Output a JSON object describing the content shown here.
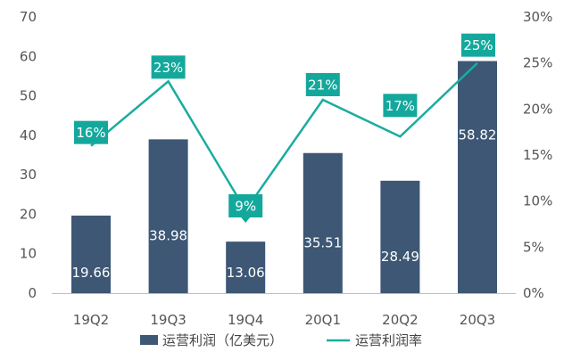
{
  "chart_data": {
    "type": "bar+line",
    "categories": [
      "19Q2",
      "19Q3",
      "19Q4",
      "20Q1",
      "20Q2",
      "20Q3"
    ],
    "series": [
      {
        "name": "运营利润（亿美元）",
        "type": "bar",
        "axis": "left",
        "values": [
          19.66,
          38.98,
          13.06,
          35.51,
          28.49,
          58.82
        ],
        "labels": [
          "19.66",
          "38.98",
          "13.06",
          "35.51",
          "28.49",
          "58.82"
        ]
      },
      {
        "name": "运营利润率",
        "type": "line",
        "axis": "right",
        "values": [
          16,
          23,
          9,
          21,
          17,
          25
        ],
        "labels": [
          "16%",
          "23%",
          "9%",
          "21%",
          "17%",
          "25%"
        ]
      }
    ],
    "left_axis": {
      "min": 0,
      "max": 70,
      "ticks": [
        "0",
        "10",
        "20",
        "30",
        "40",
        "50",
        "60",
        "70"
      ]
    },
    "right_axis": {
      "min": 0,
      "max": 30,
      "ticks": [
        "0%",
        "5%",
        "10%",
        "15%",
        "20%",
        "25%",
        "30%"
      ]
    },
    "legend": [
      "运营利润（亿美元）",
      "运营利润率"
    ],
    "legend_position": "bottom",
    "colors": {
      "bar": "#3d5775",
      "line": "#1aaca0",
      "label_box": "#14a89c",
      "axis": "#bfbfbf"
    }
  }
}
